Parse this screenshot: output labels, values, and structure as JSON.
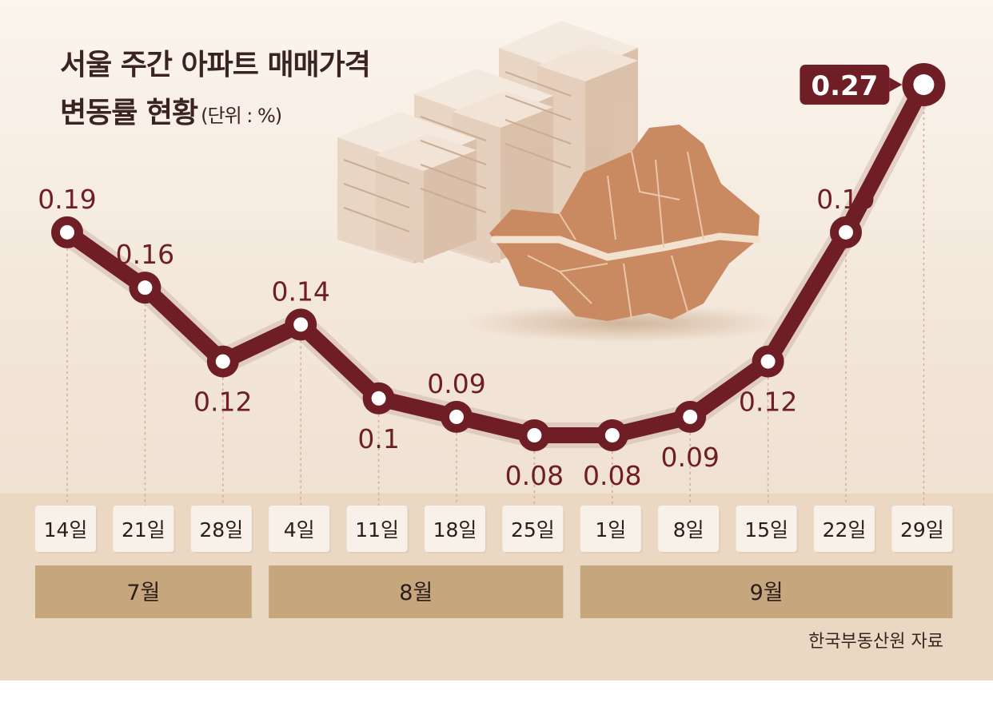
{
  "title_line1": "서울 주간 아파트 매매가격",
  "title_line2": "변동률 현황",
  "unit": "(단위 : %)",
  "source": "한국부동산원 자료",
  "colors": {
    "line": "#6e1e24",
    "label": "#6e1e24",
    "highlight_badge": "#6e1e24",
    "date_box": "#f7f1ea",
    "month_bar": "#c6a67c",
    "map": "#c98a62"
  },
  "decor_icons": [
    "apartment-buildings-illustration",
    "seoul-map-illustration"
  ],
  "chart_data": {
    "type": "line",
    "title": "서울 주간 아파트 매매가격 변동률 현황",
    "unit": "%",
    "categories": [
      "14일",
      "21일",
      "28일",
      "4일",
      "11일",
      "18일",
      "25일",
      "1일",
      "8일",
      "15일",
      "22일",
      "29일"
    ],
    "values": [
      0.19,
      0.16,
      0.12,
      0.14,
      0.1,
      0.09,
      0.08,
      0.08,
      0.09,
      0.12,
      0.19,
      0.27
    ],
    "value_labels": [
      "0.19",
      "0.16",
      "0.12",
      "0.14",
      "0.1",
      "0.09",
      "0.08",
      "0.08",
      "0.09",
      "0.12",
      "0.19",
      "0.27"
    ],
    "label_positions": [
      "above",
      "above",
      "below",
      "above",
      "below",
      "above",
      "below",
      "below",
      "below",
      "below",
      "above",
      "badge"
    ],
    "months": [
      {
        "label": "7월",
        "start": 0,
        "end": 2
      },
      {
        "label": "8월",
        "start": 3,
        "end": 6
      },
      {
        "label": "9월",
        "start": 7,
        "end": 11
      }
    ],
    "highlight_index": 11,
    "grid": false,
    "legend": "none"
  }
}
